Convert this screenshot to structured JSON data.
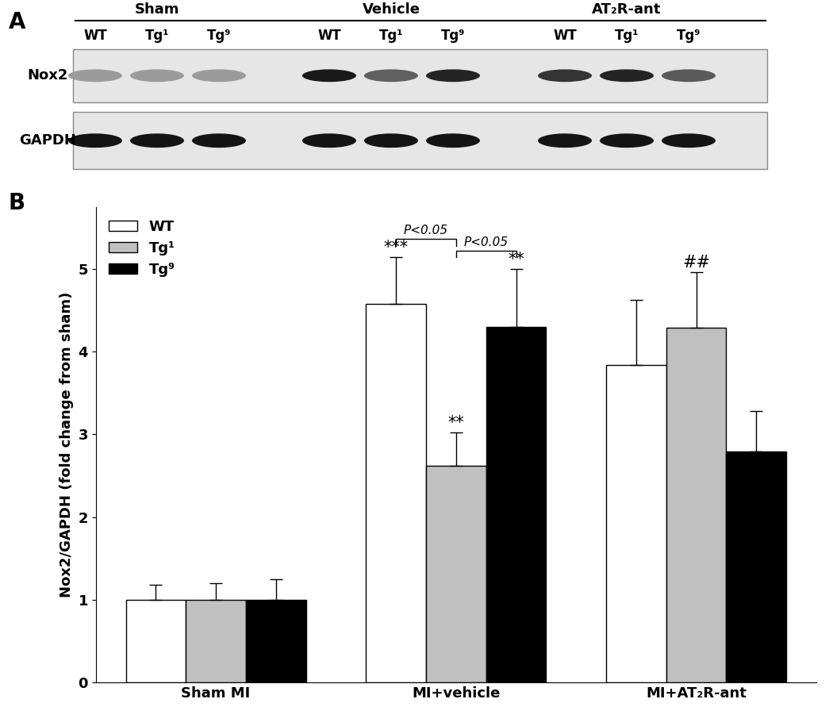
{
  "panel_labels": [
    "A",
    "B"
  ],
  "blot": {
    "groups": [
      "Sham",
      "Vehicle",
      "AT₂R-ant"
    ],
    "rows": [
      "Nox2",
      "GAPDH"
    ]
  },
  "chart_data": {
    "type": "bar",
    "categories": [
      "Sham MI",
      "MI+vehicle",
      "MI+AT₂R-ant"
    ],
    "y_label": "Nox2/GAPDH (fold change from sham)",
    "ylim": [
      0,
      5.75
    ],
    "yticks": [
      0,
      1,
      2,
      3,
      4,
      5
    ],
    "legend": "upper left",
    "grid": false,
    "series": [
      {
        "name": "WT",
        "color": "#ffffff",
        "values": [
          1.0,
          4.58,
          3.84
        ],
        "errors": [
          0.18,
          0.56,
          0.79
        ]
      },
      {
        "name": "Tg¹",
        "color": "#c0c0c0",
        "values": [
          1.0,
          2.62,
          4.29
        ],
        "errors": [
          0.2,
          0.4,
          0.67
        ]
      },
      {
        "name": "Tg⁹",
        "color": "#000000",
        "values": [
          1.0,
          4.3,
          2.79
        ],
        "errors": [
          0.25,
          0.7,
          0.49
        ]
      }
    ],
    "annotations": [
      {
        "text": "***",
        "category": 1,
        "series": "WT"
      },
      {
        "text": "**",
        "category": 1,
        "series": "Tg¹"
      },
      {
        "text": "**",
        "category": 1,
        "series": "Tg⁹"
      },
      {
        "text": "##",
        "category": 2,
        "series": "Tg¹"
      }
    ],
    "brackets": [
      {
        "text": "P<0.05",
        "category": 1,
        "from": "WT",
        "to": "Tg¹"
      },
      {
        "text": "P<0.05",
        "category": 1,
        "from": "Tg¹",
        "to": "Tg⁹"
      }
    ]
  }
}
